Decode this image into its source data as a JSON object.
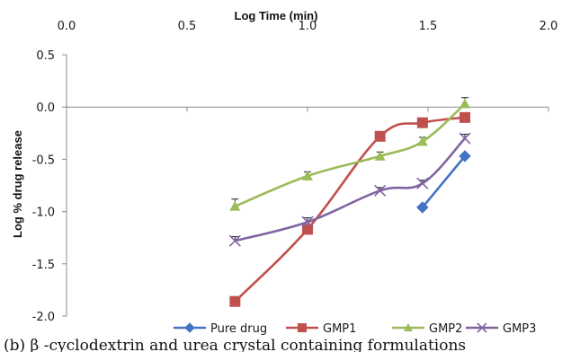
{
  "caption": "(b) β -cyclodextrin and urea crystal containing formulations",
  "chart_data": {
    "type": "line",
    "xlabel": "Log Time (min)",
    "ylabel": "Log % drug release",
    "xlim": [
      0.0,
      2.0
    ],
    "ylim": [
      -2.0,
      0.5
    ],
    "xticks": [
      0.0,
      0.5,
      1.0,
      1.5,
      2.0
    ],
    "yticks": [
      0.5,
      0.0,
      -0.5,
      -1.0,
      -1.5,
      -2.0
    ],
    "xtick_labels": [
      "0.0",
      "0.5",
      "1.0",
      "1.5",
      "2.0"
    ],
    "ytick_labels": [
      "0.5",
      "0.0",
      "-0.5",
      "-1.0",
      "-1.5",
      "-2.0"
    ],
    "x_axis_position": "top",
    "grid": false,
    "legend_position": "bottom",
    "series": [
      {
        "name": "Pure drug",
        "color": "#4472C4",
        "marker": "diamond",
        "x": [
          1.477,
          1.653
        ],
        "y": [
          -0.96,
          -0.47
        ],
        "err": [
          0.0,
          0.0
        ]
      },
      {
        "name": "GMP1",
        "color": "#C0504D",
        "marker": "square",
        "x": [
          0.699,
          1.0,
          1.301,
          1.477,
          1.653
        ],
        "y": [
          -1.86,
          -1.17,
          -0.28,
          -0.15,
          -0.1
        ],
        "err": [
          0.0,
          0.0,
          0.0,
          0.0,
          0.0
        ]
      },
      {
        "name": "GMP2",
        "color": "#9BBB59",
        "marker": "triangle",
        "x": [
          0.699,
          1.0,
          1.301,
          1.477,
          1.653
        ],
        "y": [
          -0.95,
          -0.66,
          -0.47,
          -0.33,
          0.03
        ],
        "err": [
          0.07,
          0.04,
          0.04,
          0.04,
          0.06
        ]
      },
      {
        "name": "GMP3",
        "color": "#8064A2",
        "marker": "x",
        "x": [
          0.699,
          1.0,
          1.301,
          1.477,
          1.653
        ],
        "y": [
          -1.28,
          -1.1,
          -0.8,
          -0.73,
          -0.3
        ],
        "err": [
          0.04,
          0.04,
          0.03,
          0.03,
          0.04
        ]
      }
    ]
  }
}
